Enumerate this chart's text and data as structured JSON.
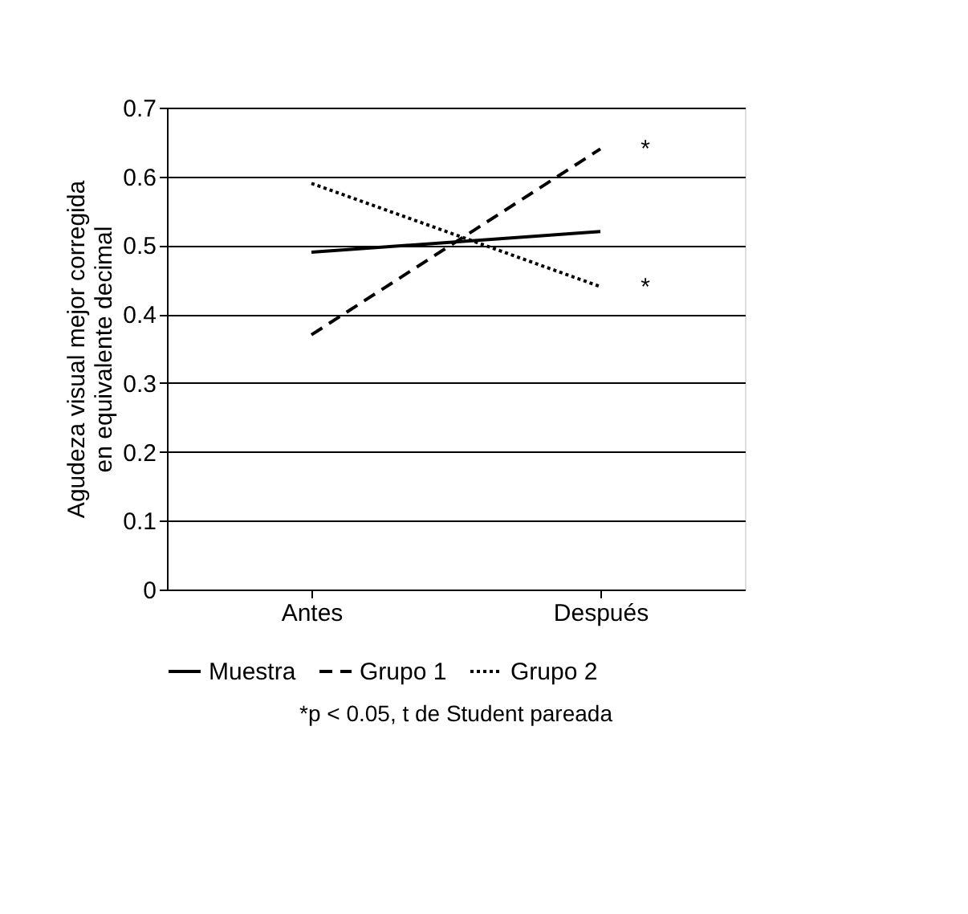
{
  "chart_data": {
    "type": "line",
    "ylabel": "Agudeza visual mejor corregida\nen equivalente decimal",
    "categories": [
      "Antes",
      "Después"
    ],
    "series": [
      {
        "name": "Muestra",
        "color": "#000000",
        "line_style": "solid",
        "values": [
          0.49,
          0.52
        ]
      },
      {
        "name": "Grupo 1",
        "color": "#000000",
        "line_style": "dashed",
        "values": [
          0.37,
          0.64
        ]
      },
      {
        "name": "Grupo 2",
        "color": "#000000",
        "line_style": "dotted",
        "values": [
          0.59,
          0.44
        ]
      }
    ],
    "ylim": [
      0,
      0.7
    ],
    "yticks": [
      0,
      0.1,
      0.2,
      0.3,
      0.4,
      0.5,
      0.6,
      0.7
    ],
    "grid": "y",
    "legend": "bottom",
    "marker": "none",
    "annotations": [
      {
        "text": "*",
        "x": "Después",
        "y": 0.64
      },
      {
        "text": "*",
        "x": "Después",
        "y": 0.44
      },
      "*p < 0.05, t de Student pareada"
    ]
  }
}
